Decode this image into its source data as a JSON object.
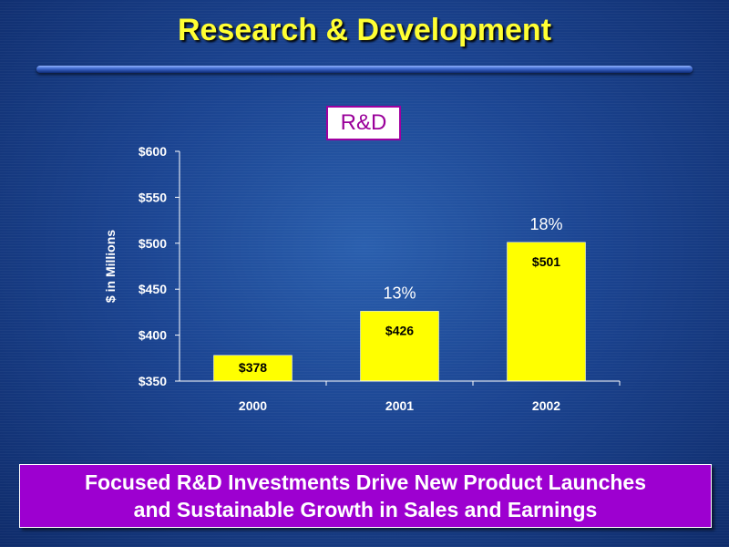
{
  "slide": {
    "title": "Research & Development",
    "tagline_line1": "Focused R&D Investments Drive New Product Launches",
    "tagline_line2": "and Sustainable Growth in Sales and Earnings"
  },
  "colors": {
    "title": "#ffff33",
    "bar": "#ffff00",
    "tagline_bg": "#9d00d0",
    "label_border": "#a000a0"
  },
  "chart_data": {
    "type": "bar",
    "chart_label": "R&D",
    "ylabel": "$ in Millions",
    "ylim": [
      350,
      600
    ],
    "yticks": [
      350,
      400,
      450,
      500,
      550,
      600
    ],
    "ytick_labels": [
      "$350",
      "$400",
      "$450",
      "$500",
      "$550",
      "$600"
    ],
    "categories": [
      "2000",
      "2001",
      "2002"
    ],
    "values": [
      378,
      426,
      501
    ],
    "value_labels": [
      "$378",
      "$426",
      "$501"
    ],
    "growth_labels": [
      "",
      "13%",
      "18%"
    ],
    "grid": false,
    "legend": "none"
  }
}
